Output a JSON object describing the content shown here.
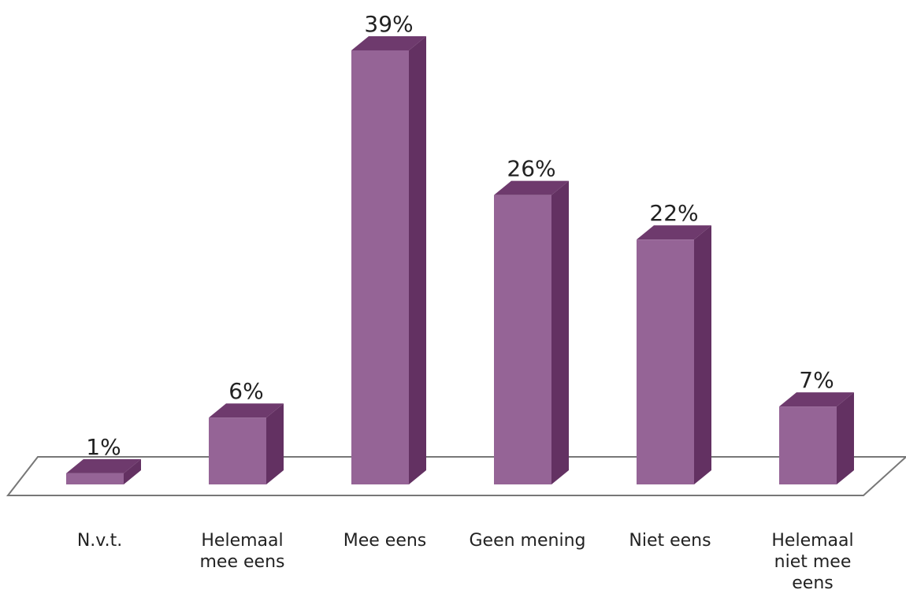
{
  "chart_data": {
    "type": "bar",
    "categories": [
      [
        "N.v.t."
      ],
      [
        "Helemaal",
        "mee eens"
      ],
      [
        "Mee eens"
      ],
      [
        "Geen mening"
      ],
      [
        "Niet eens"
      ],
      [
        "Helemaal",
        "niet mee",
        "eens"
      ]
    ],
    "category_names": [
      "N.v.t.",
      "Helemaal mee eens",
      "Mee eens",
      "Geen mening",
      "Niet eens",
      "Helemaal niet mee eens"
    ],
    "values": [
      1,
      6,
      39,
      26,
      22,
      7
    ],
    "value_labels": [
      "1%",
      "6%",
      "39%",
      "26%",
      "22%",
      "7%"
    ],
    "unit": "%",
    "title": "",
    "xlabel": "",
    "ylabel": "",
    "ylim": [
      0,
      39
    ],
    "grid": false,
    "legend": "none",
    "style": "3d-column",
    "colors": {
      "front": "#956496",
      "side": "#633162",
      "top": "#6e3a6d",
      "floor_stroke": "#777777"
    }
  }
}
